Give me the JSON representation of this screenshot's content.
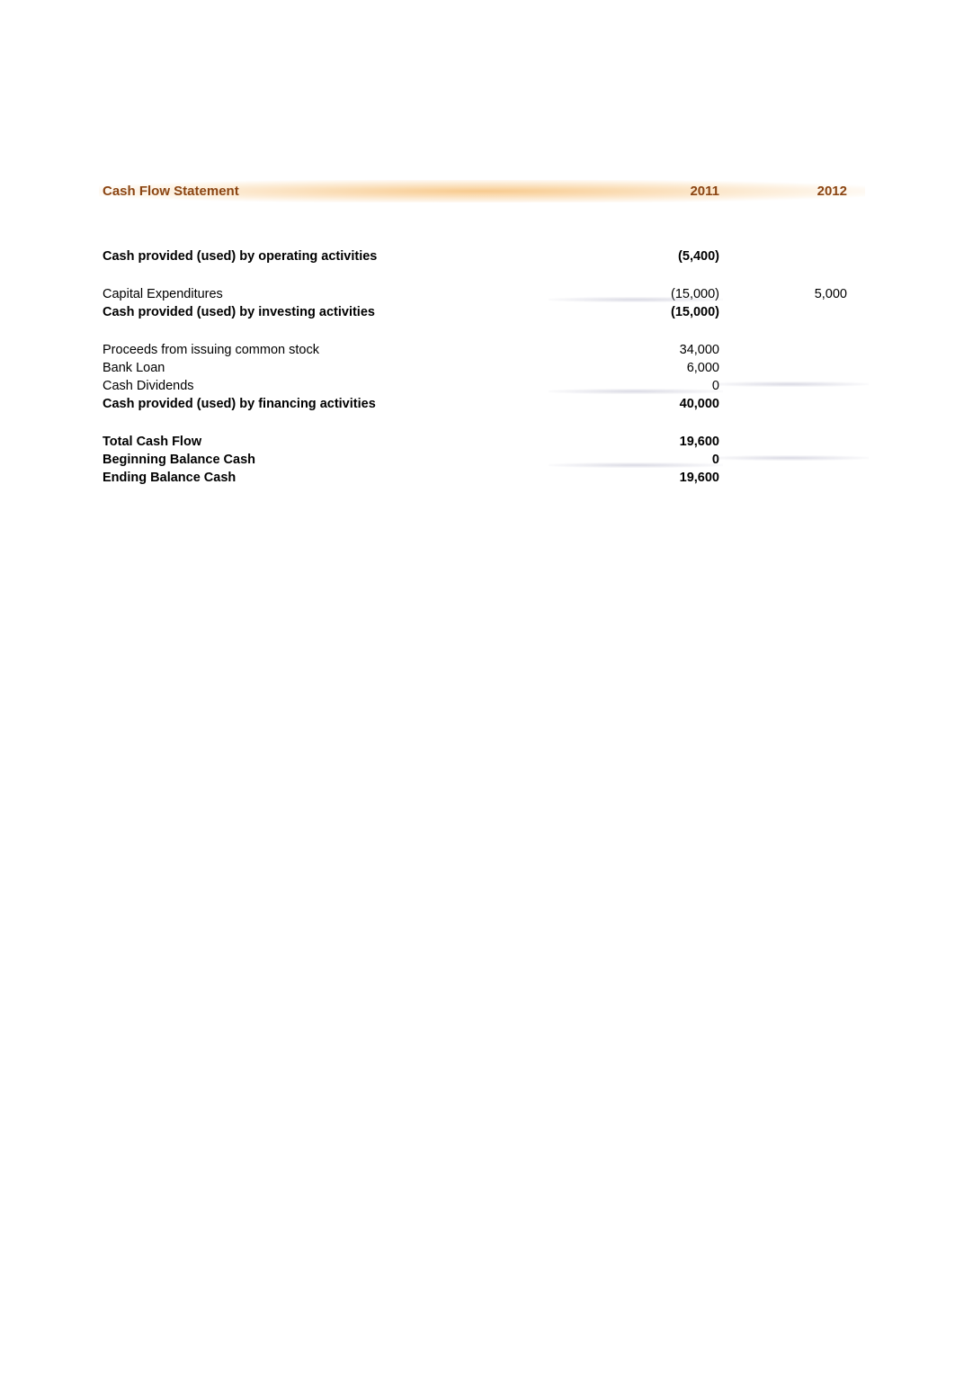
{
  "header": {
    "title": "Cash Flow Statement",
    "year1": "2011",
    "year2": "2012"
  },
  "rows": {
    "operating": {
      "label": "Cash provided (used) by operating activities",
      "val1": "(5,400)",
      "val2": ""
    },
    "capex": {
      "label": "Capital Expenditures",
      "val1": "(15,000)",
      "val2": "5,000"
    },
    "investing": {
      "label": "Cash provided (used) by investing activities",
      "val1": "(15,000)",
      "val2": ""
    },
    "proceeds": {
      "label": "Proceeds from issuing common stock",
      "val1": "34,000",
      "val2": ""
    },
    "bankloan": {
      "label": "Bank Loan",
      "val1": "6,000",
      "val2": ""
    },
    "dividends": {
      "label": "Cash Dividends",
      "val1": "0",
      "val2": ""
    },
    "financing": {
      "label": "Cash provided (used) by financing activities",
      "val1": "40,000",
      "val2": ""
    },
    "total": {
      "label": "Total Cash Flow",
      "val1": "19,600",
      "val2": ""
    },
    "beginning": {
      "label": "Beginning Balance Cash",
      "val1": "0",
      "val2": ""
    },
    "ending": {
      "label": "Ending Balance Cash",
      "val1": "19,600",
      "val2": ""
    }
  },
  "colors": {
    "header_text": "#8b4513",
    "header_bg_center": "#f8cb8f",
    "text": "#000000",
    "background": "#ffffff"
  }
}
